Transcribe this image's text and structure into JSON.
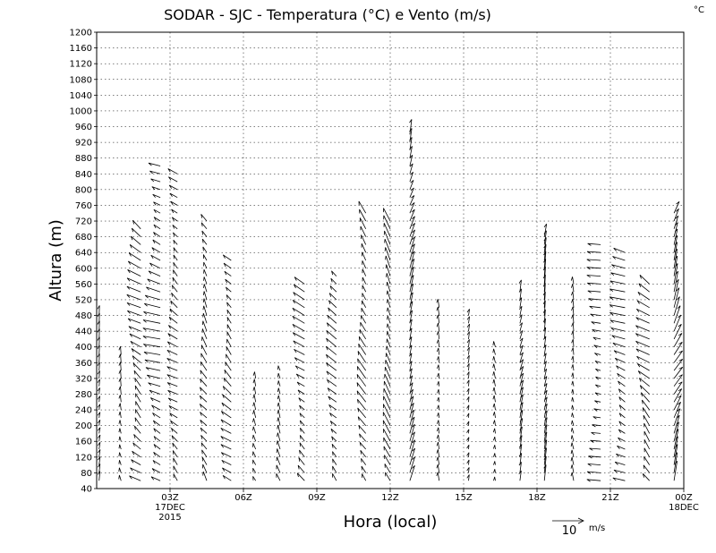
{
  "chart_data": {
    "type": "wind-vector",
    "title": "SODAR - SJC - Temperatura (°C) e Vento (m/s)",
    "corner_unit": "°C",
    "xlabel": "Hora (local)",
    "ylabel": "Altura (m)",
    "ylim": [
      40,
      1200
    ],
    "y_ticks": [
      40,
      80,
      120,
      160,
      200,
      240,
      280,
      320,
      360,
      400,
      440,
      480,
      520,
      560,
      600,
      640,
      680,
      720,
      760,
      800,
      840,
      880,
      920,
      960,
      1000,
      1040,
      1080,
      1120,
      1160,
      1200
    ],
    "xlim_hours": [
      0,
      24
    ],
    "x_ticks": [
      {
        "hour": 3,
        "label": "03Z",
        "sub1": "17DEC",
        "sub2": "2015"
      },
      {
        "hour": 6,
        "label": "06Z",
        "sub1": "",
        "sub2": ""
      },
      {
        "hour": 9,
        "label": "09Z",
        "sub1": "",
        "sub2": ""
      },
      {
        "hour": 12,
        "label": "12Z",
        "sub1": "",
        "sub2": ""
      },
      {
        "hour": 15,
        "label": "15Z",
        "sub1": "",
        "sub2": ""
      },
      {
        "hour": 18,
        "label": "18Z",
        "sub1": "",
        "sub2": ""
      },
      {
        "hour": 21,
        "label": "21Z",
        "sub1": "",
        "sub2": ""
      },
      {
        "hour": 24,
        "label": "00Z",
        "sub1": "18DEC",
        "sub2": ""
      }
    ],
    "grid": true,
    "reference_vector": {
      "speed": 10,
      "unit": "m/s",
      "label": "10"
    },
    "profiles": [
      {
        "hour": 0.1,
        "top": 480,
        "u": 0.3,
        "v": 3.0
      },
      {
        "hour": 1.0,
        "top": 380,
        "u": -0.5,
        "v": 2.5
      },
      {
        "hour": 1.8,
        "top": 700,
        "u": -4.0,
        "v": 2.5
      },
      {
        "hour": 2.6,
        "top": 860,
        "u": -5.0,
        "v": 1.5
      },
      {
        "hour": 3.3,
        "top": 850,
        "u": -3.0,
        "v": 2.0
      },
      {
        "hour": 4.5,
        "top": 730,
        "u": -2.0,
        "v": 3.0
      },
      {
        "hour": 5.5,
        "top": 620,
        "u": -3.0,
        "v": 2.5
      },
      {
        "hour": 6.5,
        "top": 320,
        "u": -0.8,
        "v": 2.2
      },
      {
        "hour": 7.5,
        "top": 340,
        "u": -1.2,
        "v": 2.5
      },
      {
        "hour": 8.5,
        "top": 560,
        "u": -3.5,
        "v": 2.2
      },
      {
        "hour": 9.8,
        "top": 590,
        "u": -3.0,
        "v": 2.5
      },
      {
        "hour": 11.0,
        "top": 740,
        "u": -2.5,
        "v": 3.5
      },
      {
        "hour": 12.0,
        "top": 730,
        "u": -2.0,
        "v": 4.0
      },
      {
        "hour": 12.8,
        "top": 940,
        "u": 1.5,
        "v": 5.0
      },
      {
        "hour": 14.0,
        "top": 500,
        "u": -0.4,
        "v": 2.5
      },
      {
        "hour": 15.2,
        "top": 480,
        "u": 0.3,
        "v": 2.2
      },
      {
        "hour": 16.3,
        "top": 410,
        "u": -0.5,
        "v": 2.0
      },
      {
        "hour": 17.3,
        "top": 550,
        "u": 1.0,
        "v": 4.5
      },
      {
        "hour": 18.3,
        "top": 690,
        "u": 0.8,
        "v": 5.0
      },
      {
        "hour": 19.5,
        "top": 560,
        "u": -0.5,
        "v": 2.5
      },
      {
        "hour": 20.6,
        "top": 660,
        "u": -4.0,
        "v": 0.5
      },
      {
        "hour": 21.6,
        "top": 640,
        "u": -4.5,
        "v": 1.5
      },
      {
        "hour": 22.6,
        "top": 560,
        "u": -4.0,
        "v": 3.0
      },
      {
        "hour": 23.6,
        "top": 750,
        "u": 2.5,
        "v": 6.0
      }
    ]
  }
}
